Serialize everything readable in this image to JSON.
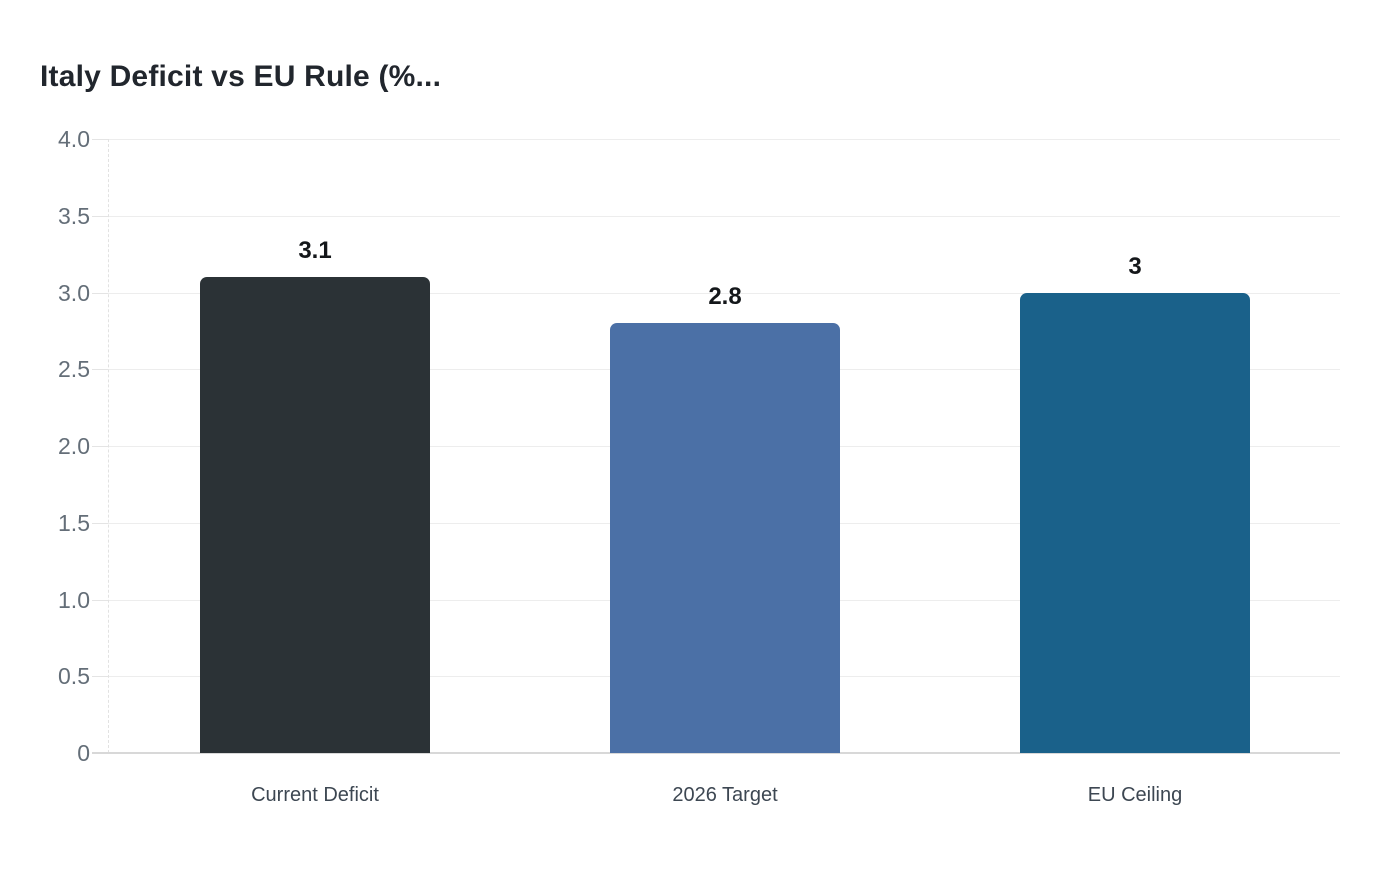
{
  "chart_data": {
    "type": "bar",
    "title": "Italy Deficit vs EU Rule (%...",
    "categories": [
      "Current Deficit",
      "2026 Target",
      "EU Ceiling"
    ],
    "values": [
      3.1,
      2.8,
      3
    ],
    "value_labels": [
      "3.1",
      "2.8",
      "3"
    ],
    "bar_colors": [
      "#2b3236",
      "#4b70a6",
      "#1a618a"
    ],
    "xlabel": "",
    "ylabel": "",
    "ylim": [
      0,
      4
    ],
    "yticks": [
      0,
      0.5,
      1,
      1.5,
      2,
      2.5,
      3,
      3.5,
      4
    ],
    "ytick_labels": [
      "0",
      "0.5",
      "1.0",
      "1.5",
      "2.0",
      "2.5",
      "3.0",
      "3.5",
      "4.0"
    ],
    "grid": true,
    "legend": false
  },
  "colors": {
    "grid_line": "#ededed",
    "baseline": "#d8d8d8",
    "axis_dashed": "#e2e2e2",
    "tick_label": "#646e78",
    "category_label": "#3d4752",
    "value_label": "#14171a",
    "title": "#21262d",
    "background": "#ffffff"
  }
}
